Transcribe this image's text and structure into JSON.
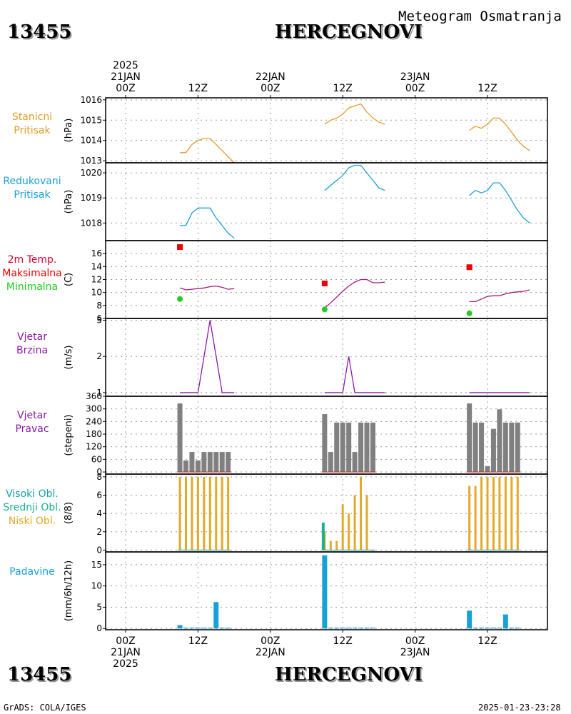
{
  "header": {
    "station_id": "13455",
    "station_name": "HERCEGNOVI",
    "product": "Meteogram Osmatranja"
  },
  "footer": {
    "station_id": "13455",
    "station_name": "HERCEGNOVI",
    "credit": "GrADS: COLA/IGES",
    "timestamp": "2025-01-23-23:28"
  },
  "time_axis": {
    "top_labels": [
      {
        "lines": [
          "2025",
          "21JAN",
          "00Z"
        ]
      },
      {
        "lines": [
          "12Z"
        ]
      },
      {
        "lines": [
          "22JAN",
          "00Z"
        ]
      },
      {
        "lines": [
          "12Z"
        ]
      },
      {
        "lines": [
          "23JAN",
          "00Z"
        ]
      },
      {
        "lines": [
          "12Z"
        ]
      }
    ],
    "bottom_labels": [
      {
        "lines": [
          "00Z",
          "21JAN",
          "2025"
        ]
      },
      {
        "lines": [
          "12Z"
        ]
      },
      {
        "lines": [
          "00Z",
          "22JAN"
        ]
      },
      {
        "lines": [
          "12Z"
        ]
      },
      {
        "lines": [
          "00Z",
          "23JAN"
        ]
      },
      {
        "lines": [
          "12Z"
        ]
      }
    ]
  },
  "panel_labels": [
    {
      "lines": [
        {
          "text": "Stanicni",
          "color": "#e69b27"
        },
        {
          "text": "Pritisak",
          "color": "#e69b27"
        }
      ]
    },
    {
      "lines": [
        {
          "text": "Redukovani",
          "color": "#1aa0d8"
        },
        {
          "text": "Pritisak",
          "color": "#1aa0d8"
        }
      ]
    },
    {
      "lines": [
        {
          "text": "2m Temp.",
          "color": "#d40032"
        },
        {
          "text": "Maksimalna",
          "color": "#ee0000"
        },
        {
          "text": "Minimalna",
          "color": "#22cc22"
        }
      ]
    },
    {
      "lines": [
        {
          "text": "Vjetar",
          "color": "#8c1aa8"
        },
        {
          "text": "Brzina",
          "color": "#8c1aa8"
        }
      ]
    },
    {
      "lines": [
        {
          "text": "Vjetar",
          "color": "#8c1aa8"
        },
        {
          "text": "Pravac",
          "color": "#8c1aa8"
        }
      ]
    },
    {
      "lines": [
        {
          "text": "Visoki Obl.",
          "color": "#1aa0b0"
        },
        {
          "text": "Srednji Obl.",
          "color": "#1ab090"
        },
        {
          "text": "Niski Obl.",
          "color": "#e6a827"
        }
      ]
    },
    {
      "lines": [
        {
          "text": "Padavine",
          "color": "#1aa0d8"
        }
      ]
    }
  ],
  "chart_data": [
    {
      "type": "line",
      "ylabel": "(hPa)",
      "ylim": [
        1012.9,
        1016.1
      ],
      "yticks": [
        1013,
        1014,
        1015,
        1016
      ],
      "grid": true,
      "color": "#e69b27",
      "segments": [
        [
          [
            9,
            1013.4
          ],
          [
            10,
            1013.4
          ],
          [
            11,
            1013.8
          ],
          [
            12,
            1014.0
          ],
          [
            13,
            1014.1
          ],
          [
            14,
            1014.1
          ],
          [
            15,
            1013.8
          ],
          [
            16,
            1013.5
          ],
          [
            17,
            1013.2
          ],
          [
            18,
            1012.9
          ]
        ],
        [
          [
            33,
            1014.8
          ],
          [
            34,
            1015.0
          ],
          [
            35,
            1015.1
          ],
          [
            36,
            1015.3
          ],
          [
            37,
            1015.6
          ],
          [
            38,
            1015.7
          ],
          [
            39,
            1015.8
          ],
          [
            40,
            1015.4
          ],
          [
            41,
            1015.1
          ],
          [
            42,
            1014.9
          ],
          [
            43,
            1014.8
          ]
        ],
        [
          [
            57,
            1014.5
          ],
          [
            58,
            1014.7
          ],
          [
            59,
            1014.6
          ],
          [
            60,
            1014.8
          ],
          [
            61,
            1015.1
          ],
          [
            62,
            1015.1
          ],
          [
            63,
            1014.8
          ],
          [
            64,
            1014.4
          ],
          [
            65,
            1014.0
          ],
          [
            66,
            1013.7
          ],
          [
            67,
            1013.5
          ]
        ]
      ]
    },
    {
      "type": "line",
      "ylabel": "(hPa)",
      "ylim": [
        1017.3,
        1020.4
      ],
      "yticks": [
        1018,
        1019,
        1020
      ],
      "grid": true,
      "color": "#1aa0d8",
      "segments": [
        [
          [
            9,
            1017.9
          ],
          [
            10,
            1017.9
          ],
          [
            11,
            1018.4
          ],
          [
            12,
            1018.6
          ],
          [
            13,
            1018.6
          ],
          [
            14,
            1018.6
          ],
          [
            15,
            1018.2
          ],
          [
            16,
            1017.9
          ],
          [
            17,
            1017.6
          ],
          [
            18,
            1017.4
          ]
        ],
        [
          [
            33,
            1019.3
          ],
          [
            34,
            1019.5
          ],
          [
            35,
            1019.7
          ],
          [
            36,
            1019.9
          ],
          [
            37,
            1020.2
          ],
          [
            38,
            1020.3
          ],
          [
            39,
            1020.3
          ],
          [
            40,
            1020.0
          ],
          [
            41,
            1019.7
          ],
          [
            42,
            1019.4
          ],
          [
            43,
            1019.3
          ]
        ],
        [
          [
            57,
            1019.1
          ],
          [
            58,
            1019.3
          ],
          [
            59,
            1019.2
          ],
          [
            60,
            1019.3
          ],
          [
            61,
            1019.6
          ],
          [
            62,
            1019.6
          ],
          [
            63,
            1019.3
          ],
          [
            64,
            1018.9
          ],
          [
            65,
            1018.5
          ],
          [
            66,
            1018.2
          ],
          [
            67,
            1018.0
          ]
        ]
      ]
    },
    {
      "type": "line",
      "ylabel": "(C)",
      "ylim": [
        6,
        18
      ],
      "yticks": [
        6,
        8,
        10,
        12,
        14,
        16
      ],
      "grid": true,
      "color": "#a8197c",
      "segments": [
        [
          [
            9,
            10.7
          ],
          [
            10,
            10.4
          ],
          [
            11,
            10.5
          ],
          [
            12,
            10.6
          ],
          [
            13,
            10.7
          ],
          [
            14,
            10.9
          ],
          [
            15,
            11.0
          ],
          [
            16,
            10.8
          ],
          [
            17,
            10.5
          ],
          [
            18,
            10.6
          ]
        ],
        [
          [
            33,
            7.6
          ],
          [
            34,
            8.4
          ],
          [
            35,
            9.3
          ],
          [
            36,
            10.2
          ],
          [
            37,
            11.0
          ],
          [
            38,
            11.6
          ],
          [
            39,
            12.0
          ],
          [
            40,
            12.0
          ],
          [
            41,
            11.5
          ],
          [
            42,
            11.5
          ],
          [
            43,
            11.6
          ]
        ],
        [
          [
            57,
            8.6
          ],
          [
            58,
            8.6
          ],
          [
            59,
            9.0
          ],
          [
            60,
            9.4
          ],
          [
            61,
            9.5
          ],
          [
            62,
            9.5
          ],
          [
            63,
            9.8
          ],
          [
            64,
            10.0
          ],
          [
            65,
            10.1
          ],
          [
            66,
            10.2
          ],
          [
            67,
            10.4
          ]
        ]
      ],
      "max_points": [
        [
          9,
          17.0
        ],
        [
          33,
          11.4
        ],
        [
          57,
          13.9
        ]
      ],
      "min_points": [
        [
          9,
          9.0
        ],
        [
          33,
          7.4
        ],
        [
          57,
          6.8
        ]
      ],
      "max_color": "#ee0000",
      "min_color": "#22cc22"
    },
    {
      "type": "line",
      "ylabel": "(m/s)",
      "ylim": [
        0.9,
        3.05
      ],
      "yticks": [
        1,
        2,
        3
      ],
      "grid": true,
      "color": "#8c1aa8",
      "segments": [
        [
          [
            9,
            1
          ],
          [
            10,
            1
          ],
          [
            11,
            1
          ],
          [
            12,
            1
          ],
          [
            13,
            2
          ],
          [
            14,
            3
          ],
          [
            15,
            2
          ],
          [
            16,
            1
          ],
          [
            17,
            1
          ],
          [
            18,
            1
          ]
        ],
        [
          [
            33,
            1
          ],
          [
            34,
            1
          ],
          [
            35,
            1
          ],
          [
            36,
            1
          ],
          [
            37,
            2
          ],
          [
            38,
            1
          ],
          [
            39,
            1
          ],
          [
            40,
            1
          ],
          [
            41,
            1
          ],
          [
            42,
            1
          ],
          [
            43,
            1
          ]
        ],
        [
          [
            57,
            1
          ],
          [
            58,
            1
          ],
          [
            59,
            1
          ],
          [
            60,
            1
          ],
          [
            61,
            1
          ],
          [
            62,
            1
          ],
          [
            63,
            1
          ],
          [
            64,
            1
          ],
          [
            65,
            1
          ],
          [
            66,
            1
          ],
          [
            67,
            1
          ]
        ]
      ]
    },
    {
      "type": "bar",
      "ylabel": "(stepeni)",
      "ylim": [
        -10,
        360
      ],
      "yticks": [
        0,
        60,
        120,
        180,
        240,
        300,
        360
      ],
      "ytick_labels": [
        "0",
        "60",
        "120",
        "180",
        "240",
        "300",
        "360"
      ],
      "grid": true,
      "color": "#808080",
      "baseline_color": "#d03030",
      "groups": [
        {
          "x": [
            9,
            10,
            11,
            12,
            13,
            14,
            15,
            16,
            17
          ],
          "values": [
            326,
            55,
            95,
            55,
            95,
            95,
            95,
            95,
            95
          ]
        },
        {
          "x": [
            33,
            34,
            35,
            36,
            37,
            38,
            39,
            40,
            41
          ],
          "values": [
            275,
            95,
            235,
            235,
            235,
            95,
            235,
            235,
            235
          ]
        },
        {
          "x": [
            57,
            58,
            59,
            60,
            61,
            62,
            63,
            64,
            65
          ],
          "values": [
            326,
            235,
            235,
            28,
            205,
            298,
            235,
            235,
            235
          ]
        }
      ]
    },
    {
      "type": "bar",
      "ylabel": "(8/8)",
      "ylim": [
        -0.2,
        8.3
      ],
      "yticks": [
        0,
        2,
        4,
        6,
        8
      ],
      "grid": true,
      "series": [
        {
          "name": "Niski Obl.",
          "color": "#e6a827",
          "x": [
            9,
            10,
            11,
            12,
            13,
            14,
            15,
            16,
            17,
            33,
            34,
            35,
            36,
            37,
            38,
            39,
            40,
            41,
            57,
            58,
            59,
            60,
            61,
            62,
            63,
            64,
            65
          ],
          "values": [
            8,
            8,
            8,
            8,
            8,
            8,
            8,
            8,
            8,
            2,
            1,
            1,
            5,
            4,
            6,
            8,
            6,
            0,
            7,
            7,
            8,
            8,
            8,
            8,
            8,
            8,
            8
          ]
        },
        {
          "name": "Srednji Obl.",
          "color": "#1ab090",
          "x": [
            33
          ],
          "values": [
            3
          ]
        },
        {
          "name": "Visoki Obl.",
          "color": "#1aa0b0",
          "x": [],
          "values": []
        }
      ]
    },
    {
      "type": "bar",
      "ylabel": "(mm/6h/12h)",
      "ylim": [
        -0.3,
        18
      ],
      "yticks": [
        0,
        5,
        10,
        15
      ],
      "grid": true,
      "color": "#1aa0d8",
      "groups": [
        {
          "x": [
            9,
            10,
            11,
            12,
            13,
            14,
            15,
            16,
            17
          ],
          "values": [
            0.8,
            0.2,
            0.2,
            0.2,
            0.2,
            0.2,
            6.2,
            0.2,
            0.2
          ]
        },
        {
          "x": [
            33,
            34,
            35,
            36,
            37,
            38,
            39,
            40,
            41
          ],
          "values": [
            17.2,
            0.2,
            0.2,
            0.2,
            0.2,
            0.2,
            0.2,
            0.2,
            0.2
          ]
        },
        {
          "x": [
            57,
            58,
            59,
            60,
            61,
            62,
            63,
            64,
            65
          ],
          "values": [
            4.2,
            0.2,
            0.2,
            0.2,
            0.2,
            0.2,
            3.3,
            0.2,
            0.2
          ]
        }
      ]
    }
  ]
}
